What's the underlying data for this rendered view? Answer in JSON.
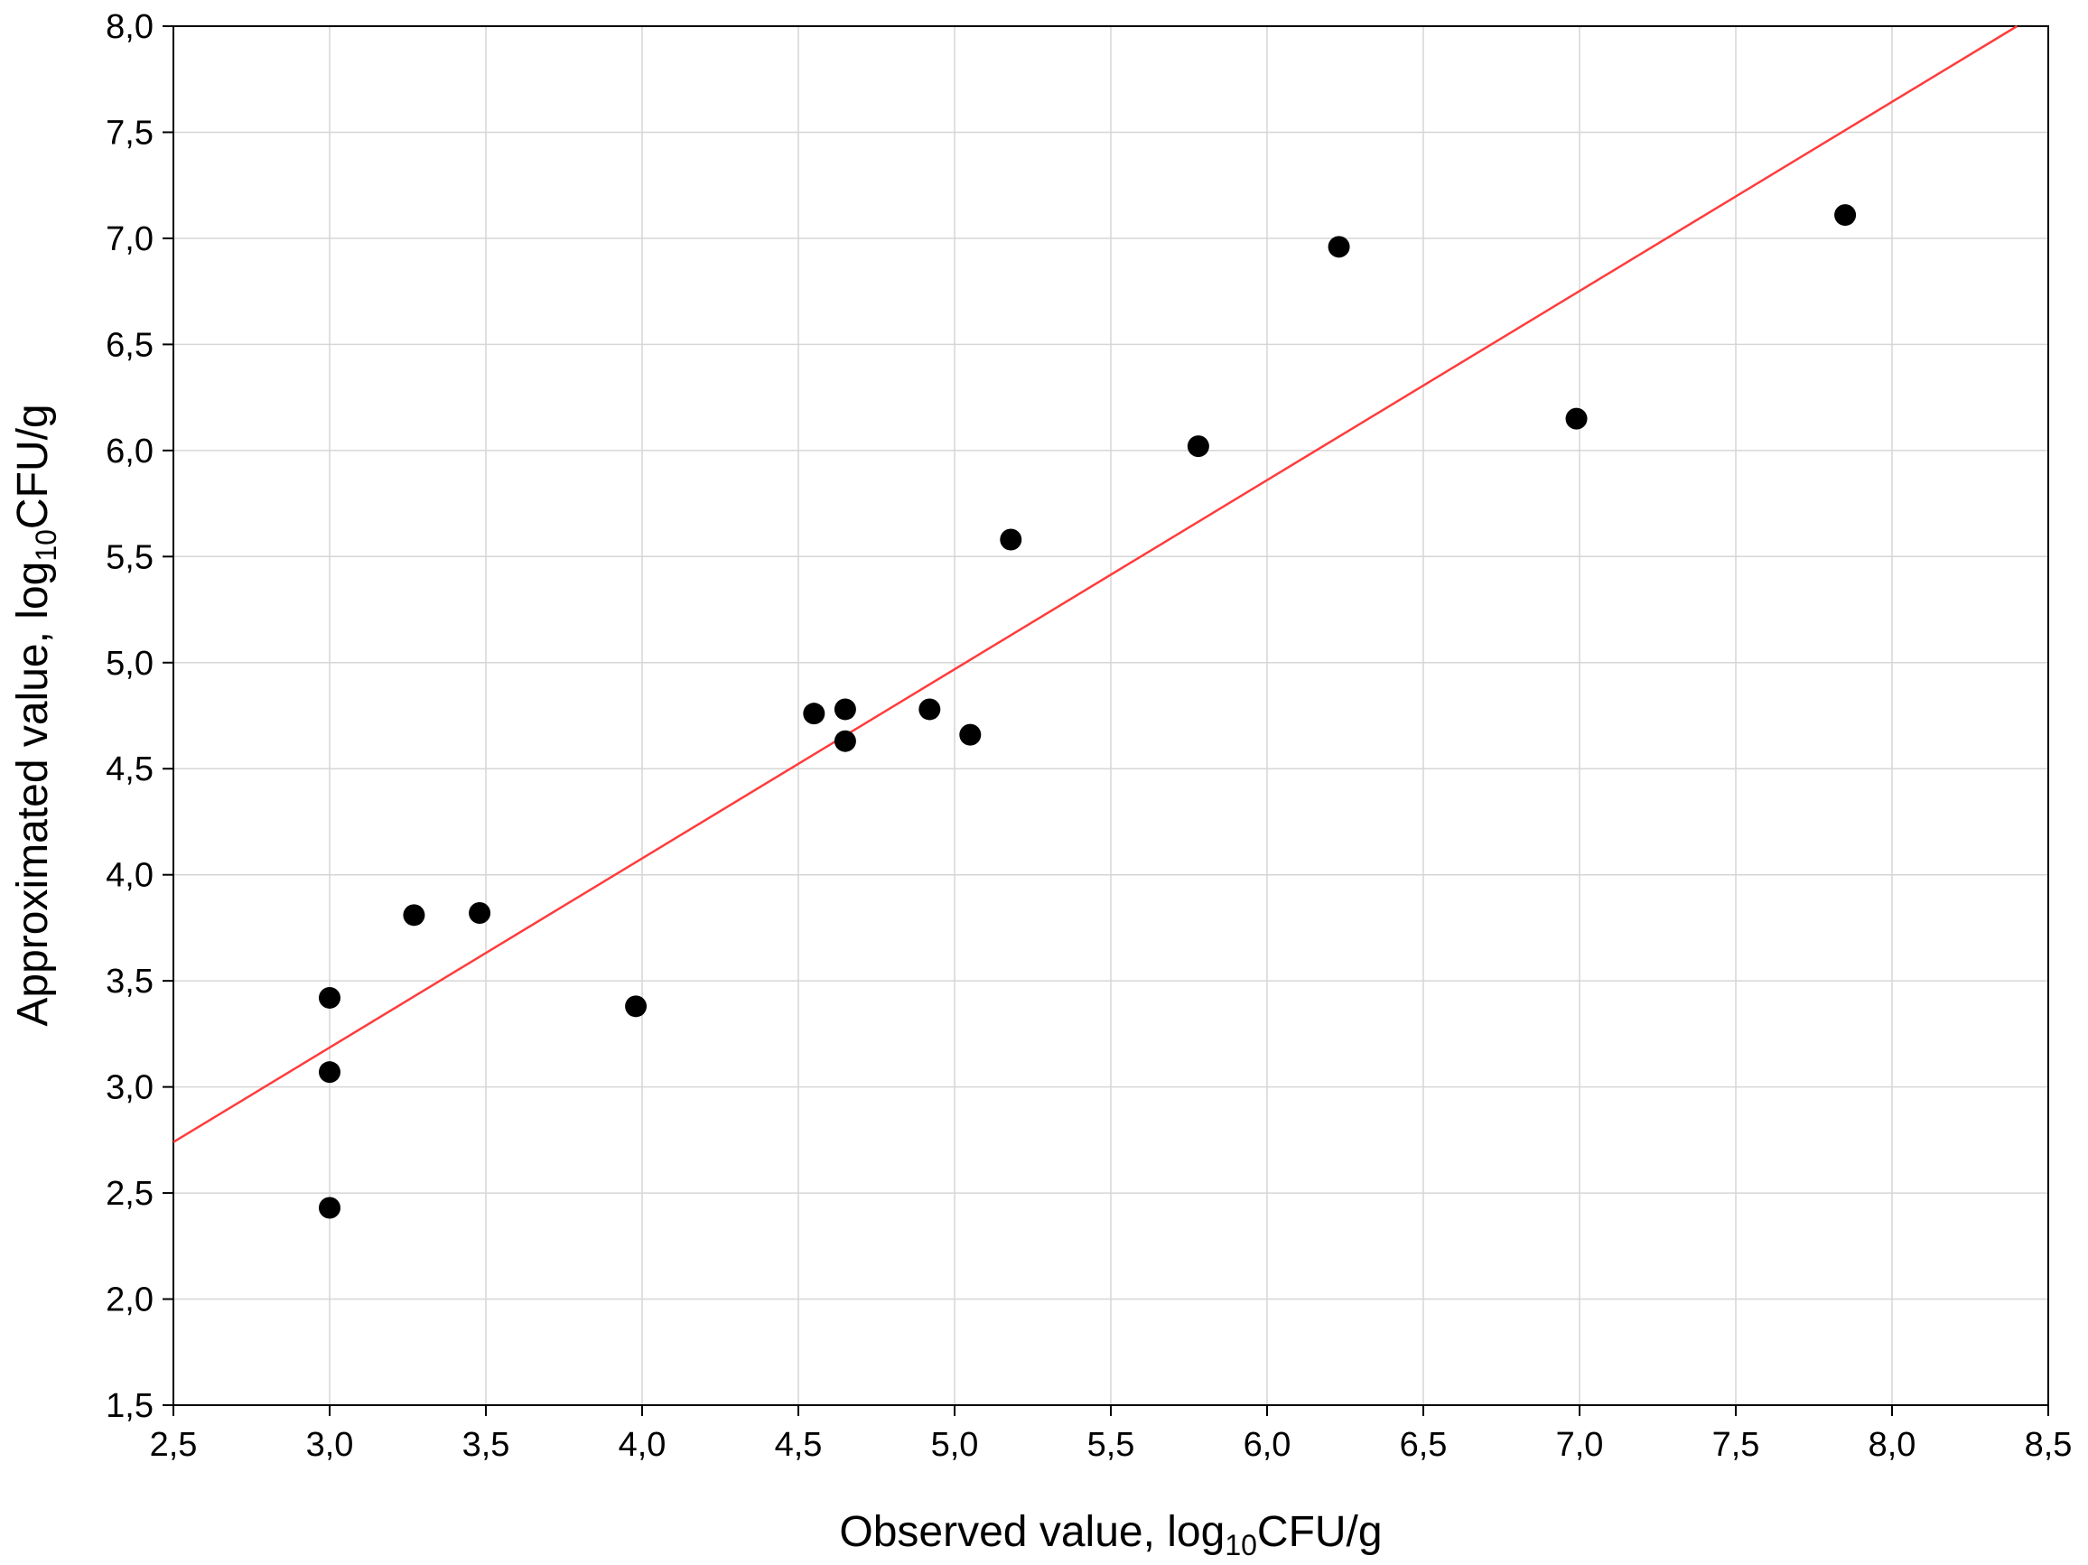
{
  "chart_data": {
    "type": "scatter",
    "xlabel": {
      "prefix": "Observed value, log",
      "sub": "10",
      "suffix": "CFU/g"
    },
    "ylabel": {
      "prefix": "Approximated value, log",
      "sub": "10",
      "suffix": "CFU/g"
    },
    "xlim": [
      2.5,
      8.5
    ],
    "ylim": [
      1.5,
      8.0
    ],
    "x_ticks": [
      2.5,
      3.0,
      3.5,
      4.0,
      4.5,
      5.0,
      5.5,
      6.0,
      6.5,
      7.0,
      7.5,
      8.0,
      8.5
    ],
    "y_ticks": [
      1.5,
      2.0,
      2.5,
      3.0,
      3.5,
      4.0,
      4.5,
      5.0,
      5.5,
      6.0,
      6.5,
      7.0,
      7.5,
      8.0
    ],
    "x_tick_labels": [
      "2,5",
      "3,0",
      "3,5",
      "4,0",
      "4,5",
      "5,0",
      "5,5",
      "6,0",
      "6,5",
      "7,0",
      "7,5",
      "8,0",
      "8,5"
    ],
    "y_tick_labels": [
      "1,5",
      "2,0",
      "2,5",
      "3,0",
      "3,5",
      "4,0",
      "4,5",
      "5,0",
      "5,5",
      "6,0",
      "6,5",
      "7,0",
      "7,5",
      "8,0"
    ],
    "grid": true,
    "legend": "none",
    "colors": {
      "points": "#000000",
      "fit_line": "#ff3b3b",
      "grid": "#d6d6d6"
    },
    "points": [
      {
        "x": 3.0,
        "y": 3.42
      },
      {
        "x": 3.0,
        "y": 3.07
      },
      {
        "x": 3.0,
        "y": 2.43
      },
      {
        "x": 3.27,
        "y": 3.81
      },
      {
        "x": 3.48,
        "y": 3.82
      },
      {
        "x": 3.98,
        "y": 3.38
      },
      {
        "x": 4.55,
        "y": 4.76
      },
      {
        "x": 4.65,
        "y": 4.78
      },
      {
        "x": 4.65,
        "y": 4.63
      },
      {
        "x": 4.92,
        "y": 4.78
      },
      {
        "x": 5.05,
        "y": 4.66
      },
      {
        "x": 5.18,
        "y": 5.58
      },
      {
        "x": 5.78,
        "y": 6.02
      },
      {
        "x": 6.23,
        "y": 6.96
      },
      {
        "x": 6.99,
        "y": 6.15
      },
      {
        "x": 7.85,
        "y": 7.11
      }
    ],
    "fit_line": {
      "x": [
        2.5,
        8.4
      ],
      "y": [
        2.74,
        8.0
      ]
    }
  }
}
